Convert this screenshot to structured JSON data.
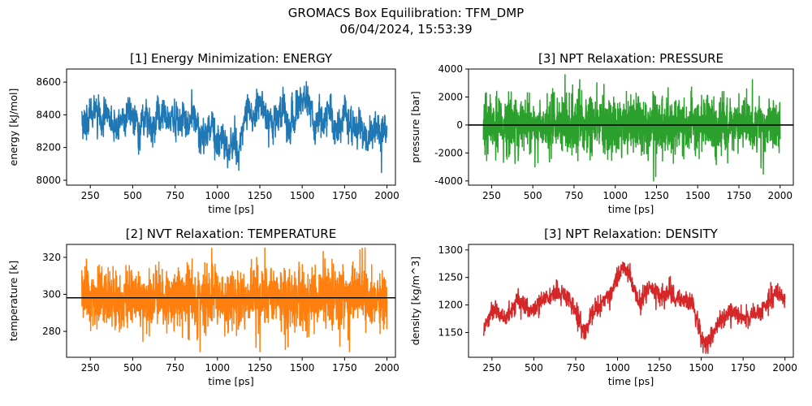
{
  "figure": {
    "title_line1": "GROMACS Box Equilibration: TFM_DMP",
    "title_line2": "06/04/2024, 15:53:39"
  },
  "chart_data": [
    {
      "type": "line",
      "title": "[1] Energy Minimization: ENERGY",
      "xlabel": "time [ps]",
      "ylabel": "energy [kJ/mol]",
      "xlim": [
        110,
        2050
      ],
      "ylim": [
        7970,
        8680
      ],
      "xticks": [
        250,
        500,
        750,
        1000,
        1250,
        1500,
        1750,
        2000
      ],
      "yticks": [
        8000,
        8200,
        8400,
        8600
      ],
      "color": "#1f77b4",
      "reference_line": null,
      "series": [
        {
          "x_start": 200,
          "x_end": 2000,
          "n": 1500,
          "seed": 11,
          "base": 8370,
          "amp": 150,
          "noise": 45,
          "walk": 0.4,
          "freq": [
            0.004,
            0.013
          ],
          "anchors": [
            [
              200,
              8370
            ],
            [
              300,
              8380
            ],
            [
              420,
              8330
            ],
            [
              500,
              8380
            ],
            [
              650,
              8350
            ],
            [
              800,
              8330
            ],
            [
              1000,
              8230
            ],
            [
              1150,
              8300
            ],
            [
              1240,
              8430
            ],
            [
              1350,
              8380
            ],
            [
              1500,
              8410
            ],
            [
              1650,
              8340
            ],
            [
              1800,
              8340
            ],
            [
              2000,
              8260
            ]
          ],
          "min": 7990,
          "max": 8660
        }
      ]
    },
    {
      "type": "line",
      "title": "[3] NPT Relaxation: PRESSURE",
      "xlabel": "time [ps]",
      "ylabel": "pressure [bar]",
      "xlim": [
        110,
        2080
      ],
      "ylim": [
        -4300,
        4000
      ],
      "xticks": [
        250,
        500,
        750,
        1000,
        1250,
        1500,
        1750,
        2000
      ],
      "yticks": [
        -4000,
        -2000,
        0,
        2000,
        4000
      ],
      "color": "#2ca02c",
      "reference_line": 0,
      "series": [
        {
          "x_start": 200,
          "x_end": 2000,
          "n": 1800,
          "seed": 23,
          "base": 0,
          "amp": 0,
          "noise": 1000,
          "walk": 0.0,
          "freq": [
            0.01,
            0.03
          ],
          "anchors": [
            [
              200,
              0
            ],
            [
              2000,
              0
            ]
          ],
          "min": -4000,
          "max": 3600
        }
      ]
    },
    {
      "type": "line",
      "title": "[2] NVT Relaxation: TEMPERATURE",
      "xlabel": "time [ps]",
      "ylabel": "temperature [k]",
      "xlim": [
        110,
        2050
      ],
      "ylim": [
        266,
        327
      ],
      "xticks": [
        250,
        500,
        750,
        1000,
        1250,
        1500,
        1750,
        2000
      ],
      "yticks": [
        280,
        300,
        320
      ],
      "color": "#ff7f0e",
      "reference_line": 298.15,
      "series": [
        {
          "x_start": 200,
          "x_end": 2000,
          "n": 1800,
          "seed": 37,
          "base": 298,
          "amp": 0,
          "noise": 8,
          "walk": 0.0,
          "freq": [
            0.01,
            0.02
          ],
          "anchors": [
            [
              200,
              298
            ],
            [
              2000,
              298
            ]
          ],
          "min": 269,
          "max": 325
        }
      ]
    },
    {
      "type": "line",
      "title": "[3] NPT Relaxation: DENSITY",
      "xlabel": "time [ps]",
      "ylabel": "density [kg/m^3]",
      "xlim": [
        110,
        2050
      ],
      "ylim": [
        1105,
        1310
      ],
      "xticks": [
        250,
        500,
        750,
        1000,
        1250,
        1500,
        1750,
        2000
      ],
      "yticks": [
        1150,
        1200,
        1250,
        1300
      ],
      "color": "#d62728",
      "reference_line": null,
      "series": [
        {
          "x_start": 200,
          "x_end": 2000,
          "n": 1300,
          "seed": 53,
          "base": 1200,
          "amp": 0,
          "noise": 9,
          "walk": 0.0,
          "freq": [
            0.02,
            0.05
          ],
          "anchors": [
            [
              200,
              1160
            ],
            [
              260,
              1195
            ],
            [
              330,
              1170
            ],
            [
              400,
              1210
            ],
            [
              480,
              1190
            ],
            [
              550,
              1205
            ],
            [
              650,
              1225
            ],
            [
              720,
              1210
            ],
            [
              800,
              1150
            ],
            [
              850,
              1185
            ],
            [
              920,
              1205
            ],
            [
              970,
              1230
            ],
            [
              1020,
              1265
            ],
            [
              1070,
              1255
            ],
            [
              1130,
              1205
            ],
            [
              1200,
              1235
            ],
            [
              1260,
              1215
            ],
            [
              1300,
              1225
            ],
            [
              1380,
              1210
            ],
            [
              1450,
              1200
            ],
            [
              1500,
              1140
            ],
            [
              1530,
              1125
            ],
            [
              1600,
              1165
            ],
            [
              1680,
              1190
            ],
            [
              1750,
              1175
            ],
            [
              1850,
              1185
            ],
            [
              1950,
              1225
            ],
            [
              2000,
              1210
            ]
          ],
          "min": 1112,
          "max": 1297
        }
      ]
    }
  ]
}
